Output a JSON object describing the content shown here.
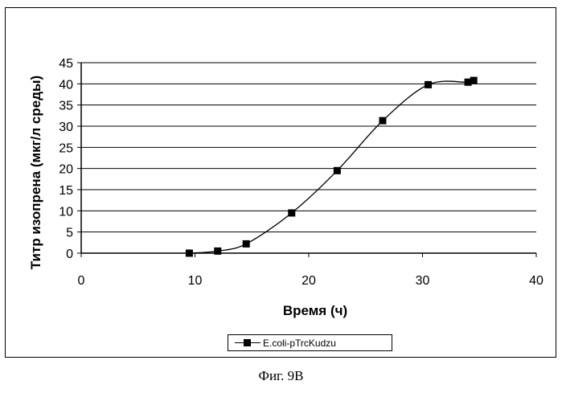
{
  "chart_data": {
    "type": "line",
    "xlabel": "Время (ч)",
    "ylabel": "Титр изопрена (мкг/л среды)",
    "xlim": [
      0,
      40
    ],
    "ylim": [
      0,
      45
    ],
    "x_ticks": [
      0,
      10,
      20,
      30,
      40
    ],
    "y_ticks": [
      0,
      5,
      10,
      15,
      20,
      25,
      30,
      35,
      40,
      45
    ],
    "grid": "horizontal",
    "legend_position": "bottom-center",
    "series": [
      {
        "name": "E.coli-pTrcKudzu",
        "color": "#000000",
        "marker": "square",
        "x": [
          9.5,
          12,
          14.5,
          18.5,
          22.5,
          26.5,
          30.5,
          34,
          34.5
        ],
        "y": [
          0,
          0.5,
          2.2,
          9.5,
          19.5,
          31.3,
          39.8,
          40.4,
          40.8
        ]
      }
    ]
  },
  "caption": "Фиг. 9B"
}
